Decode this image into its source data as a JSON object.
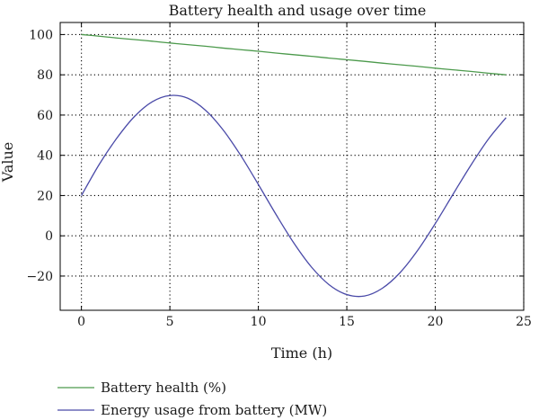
{
  "chart_data": {
    "type": "line",
    "title": "Battery health and usage over time",
    "xlabel": "Time (h)",
    "ylabel": "Value",
    "xlim": [
      -1.2,
      25
    ],
    "ylim": [
      -37,
      106
    ],
    "x_ticks": [
      0,
      5,
      10,
      15,
      20,
      25
    ],
    "y_ticks": [
      100,
      80,
      60,
      40,
      20,
      0,
      -20
    ],
    "x_tick_labels": [
      "0",
      "5",
      "10",
      "15",
      "20",
      "25"
    ],
    "y_tick_labels": [
      "100",
      "80",
      "60",
      "40",
      "20",
      "0",
      "−20"
    ],
    "grid": true,
    "grid_style": "dotted",
    "legend_placement": "below",
    "x": [
      0,
      1,
      2,
      3,
      4,
      5,
      6,
      7,
      8,
      9,
      10,
      11,
      12,
      13,
      14,
      15,
      16,
      17,
      18,
      19,
      20,
      21,
      22,
      23,
      24
    ],
    "series": [
      {
        "name": "Battery health (%)",
        "color": "#4c9a4c",
        "values": [
          100,
          99.2,
          98.3,
          97.5,
          96.7,
          95.8,
          95,
          94.2,
          93.3,
          92.5,
          91.7,
          90.8,
          90,
          89.2,
          88.3,
          87.5,
          86.7,
          85.8,
          85,
          84.2,
          83.3,
          82.5,
          81.7,
          80.8,
          80
        ]
      },
      {
        "name": "Energy usage from battery (MW)",
        "color": "#4a4aa8",
        "values": [
          20,
          35.4,
          48.5,
          59.3,
          66.6,
          69.7,
          68.4,
          62.5,
          52.7,
          40,
          25.5,
          10.6,
          -3.5,
          -15.5,
          -24.3,
          -29.2,
          -29.9,
          -26.1,
          -18.4,
          -7.3,
          6.1,
          20.6,
          34.9,
          48,
          58.7
        ]
      }
    ]
  }
}
